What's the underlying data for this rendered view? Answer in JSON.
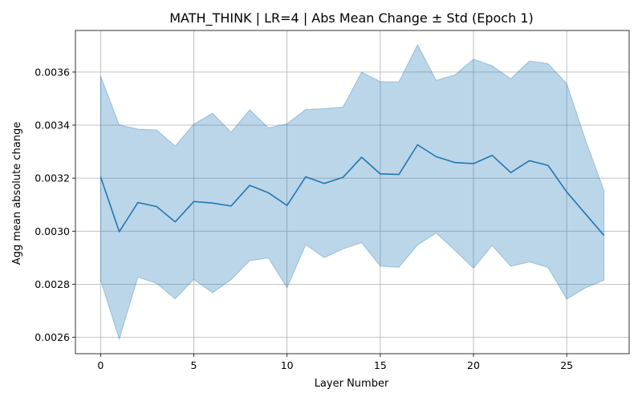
{
  "chart_data": {
    "type": "line",
    "title": "MATH_THINK | LR=4 | Abs Mean Change ± Std (Epoch 1)",
    "xlabel": "Layer Number",
    "ylabel": "Agg mean absolute change",
    "xlim": [
      -1.35,
      28.35
    ],
    "ylim": [
      0.002538,
      0.003757
    ],
    "grid": true,
    "x_ticks": [
      "0",
      "5",
      "10",
      "15",
      "20",
      "25"
    ],
    "y_ticks": [
      "0.0026",
      "0.0028",
      "0.0030",
      "0.0032",
      "0.0034",
      "0.0036"
    ],
    "colors": {
      "line": "#1f77b4",
      "band": "#1f77b4",
      "grid": "#b0b0b0"
    },
    "series": [
      {
        "x": [
          0,
          1,
          2,
          3,
          4,
          5,
          6,
          7,
          8,
          9,
          10,
          11,
          12,
          13,
          14,
          15,
          16,
          17,
          18,
          19,
          20,
          21,
          22,
          23,
          24,
          25,
          26,
          27
        ],
        "mean": [
          0.003205,
          0.002998,
          0.003108,
          0.003093,
          0.003035,
          0.003112,
          0.003106,
          0.003095,
          0.003173,
          0.003145,
          0.003097,
          0.003205,
          0.00318,
          0.003203,
          0.003279,
          0.003216,
          0.003214,
          0.003326,
          0.003281,
          0.003259,
          0.003255,
          0.003286,
          0.003221,
          0.003266,
          0.003248,
          0.003148,
          0.003066,
          0.002984
        ],
        "upper": [
          0.003585,
          0.003401,
          0.003385,
          0.003382,
          0.003321,
          0.003404,
          0.003445,
          0.003373,
          0.003458,
          0.00339,
          0.003405,
          0.003459,
          0.003462,
          0.003468,
          0.0036,
          0.003564,
          0.003563,
          0.003703,
          0.003569,
          0.003589,
          0.003649,
          0.003624,
          0.003575,
          0.003642,
          0.003632,
          0.003557,
          0.003346,
          0.003153
        ],
        "lower": [
          0.002815,
          0.002593,
          0.002827,
          0.002803,
          0.002745,
          0.002818,
          0.002768,
          0.002817,
          0.002889,
          0.002899,
          0.002787,
          0.002949,
          0.0029,
          0.002933,
          0.002957,
          0.002868,
          0.002864,
          0.002948,
          0.002993,
          0.002928,
          0.00286,
          0.002946,
          0.002868,
          0.002884,
          0.002863,
          0.002744,
          0.002786,
          0.002815
        ]
      }
    ]
  }
}
